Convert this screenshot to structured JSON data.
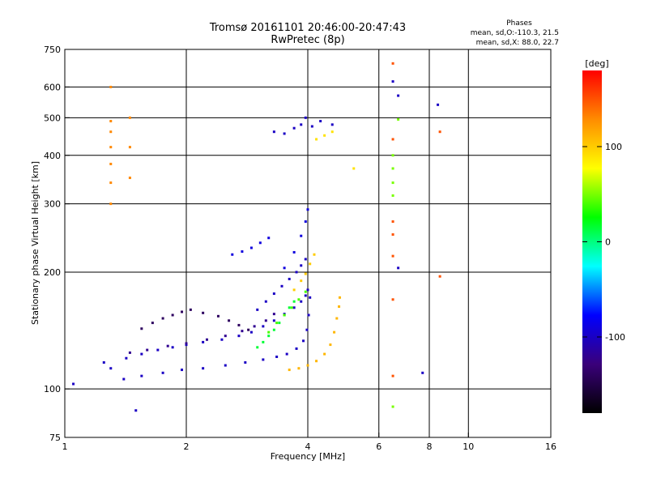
{
  "chart_data": {
    "type": "scatter",
    "title": "Tromsø 20161101 20:46:00-20:47:43",
    "subtitle": "RwPretec (8p)",
    "xlabel": "Frequency [MHz]",
    "ylabel": "Stationary phase Virtual Height [km]",
    "x_scale": "log",
    "y_scale": "log",
    "xlim": [
      1,
      16
    ],
    "ylim": [
      75,
      750
    ],
    "x_ticks": [
      1,
      2,
      4,
      6,
      8,
      10,
      16
    ],
    "y_ticks": [
      75,
      100,
      200,
      300,
      400,
      500,
      600,
      750
    ],
    "x_grid": [
      2,
      4,
      6,
      8,
      10
    ],
    "y_grid": [
      100,
      200,
      300,
      400,
      500,
      600
    ],
    "grid": true,
    "phases": {
      "heading": "Phases",
      "line1": "mean, sd,O:-110.3, 21.5",
      "line2": "mean, sd,X:  88.0, 22.7"
    },
    "colorbar": {
      "label": "[deg]",
      "ticks": [
        100,
        0,
        -100
      ],
      "range": [
        -180,
        180
      ],
      "colors": [
        "#ff0000",
        "#ff8c00",
        "#ffff00",
        "#00ff00",
        "#00ffff",
        "#0000ff",
        "#3a007a",
        "#000000"
      ]
    },
    "series": [
      {
        "phase": -100,
        "points": [
          [
            1.25,
            117
          ],
          [
            1.3,
            113
          ],
          [
            1.42,
            120
          ],
          [
            1.55,
            123
          ],
          [
            1.7,
            126
          ],
          [
            1.85,
            128
          ],
          [
            2.0,
            130
          ],
          [
            2.2,
            132
          ],
          [
            2.45,
            134
          ],
          [
            2.7,
            137
          ],
          [
            2.9,
            140
          ],
          [
            3.1,
            145
          ],
          [
            3.3,
            150
          ],
          [
            3.5,
            156
          ],
          [
            3.7,
            162
          ],
          [
            3.85,
            168
          ],
          [
            3.95,
            174
          ],
          [
            4.0,
            180
          ]
        ]
      },
      {
        "phase": -100,
        "points": [
          [
            1.4,
            106
          ],
          [
            1.55,
            108
          ],
          [
            1.75,
            110
          ],
          [
            1.95,
            112
          ],
          [
            2.2,
            113
          ],
          [
            2.5,
            115
          ],
          [
            2.8,
            117
          ],
          [
            3.1,
            119
          ],
          [
            3.35,
            121
          ],
          [
            3.55,
            123
          ],
          [
            3.75,
            127
          ],
          [
            3.9,
            133
          ],
          [
            3.98,
            142
          ],
          [
            4.02,
            155
          ],
          [
            4.05,
            172
          ]
        ]
      },
      {
        "phase": -140,
        "points": [
          [
            1.55,
            143
          ],
          [
            1.65,
            148
          ],
          [
            1.75,
            152
          ],
          [
            1.85,
            155
          ],
          [
            1.95,
            158
          ],
          [
            2.05,
            160
          ],
          [
            2.2,
            157
          ],
          [
            2.4,
            154
          ],
          [
            2.55,
            150
          ],
          [
            2.7,
            146
          ],
          [
            2.85,
            142
          ]
        ]
      },
      {
        "phase": -120,
        "points": [
          [
            1.45,
            124
          ],
          [
            1.6,
            126
          ],
          [
            1.8,
            129
          ],
          [
            2.0,
            131
          ],
          [
            2.25,
            134
          ],
          [
            2.5,
            137
          ],
          [
            2.75,
            141
          ],
          [
            2.95,
            145
          ],
          [
            3.15,
            150
          ],
          [
            3.3,
            156
          ]
        ]
      },
      {
        "phase": -100,
        "points": [
          [
            3.0,
            160
          ],
          [
            3.15,
            168
          ],
          [
            3.3,
            176
          ],
          [
            3.45,
            184
          ],
          [
            3.6,
            192
          ],
          [
            3.75,
            200
          ],
          [
            3.85,
            208
          ],
          [
            3.95,
            216
          ]
        ]
      },
      {
        "phase": -90,
        "points": [
          [
            3.5,
            205
          ],
          [
            3.7,
            225
          ],
          [
            3.85,
            248
          ],
          [
            3.95,
            270
          ],
          [
            4.0,
            290
          ]
        ]
      },
      {
        "phase": -90,
        "points": [
          [
            2.6,
            222
          ],
          [
            2.75,
            226
          ],
          [
            2.9,
            231
          ],
          [
            3.05,
            238
          ],
          [
            3.2,
            245
          ]
        ]
      },
      {
        "phase": 15,
        "points": [
          [
            3.0,
            128
          ],
          [
            3.1,
            132
          ],
          [
            3.2,
            137
          ],
          [
            3.3,
            142
          ],
          [
            3.4,
            148
          ],
          [
            3.5,
            155
          ],
          [
            3.6,
            162
          ],
          [
            3.7,
            168
          ]
        ]
      },
      {
        "phase": 40,
        "points": [
          [
            3.2,
            140
          ],
          [
            3.35,
            148
          ],
          [
            3.5,
            155
          ],
          [
            3.65,
            162
          ],
          [
            3.8,
            170
          ],
          [
            3.95,
            178
          ]
        ]
      },
      {
        "phase": 110,
        "points": [
          [
            3.6,
            112
          ],
          [
            3.8,
            113
          ],
          [
            4.0,
            115
          ],
          [
            4.2,
            118
          ],
          [
            4.4,
            123
          ],
          [
            4.55,
            130
          ],
          [
            4.65,
            140
          ],
          [
            4.72,
            152
          ],
          [
            4.78,
            163
          ],
          [
            4.8,
            172
          ]
        ]
      },
      {
        "phase": 100,
        "points": [
          [
            3.7,
            180
          ],
          [
            3.85,
            190
          ],
          [
            3.95,
            198
          ],
          [
            4.05,
            210
          ],
          [
            4.15,
            222
          ]
        ]
      },
      {
        "phase": 130,
        "points": [
          [
            1.3,
            300
          ],
          [
            1.3,
            340
          ],
          [
            1.3,
            380
          ],
          [
            1.3,
            420
          ],
          [
            1.3,
            460
          ],
          [
            1.3,
            490
          ],
          [
            1.3,
            600
          ],
          [
            1.45,
            350
          ],
          [
            1.45,
            420
          ],
          [
            1.45,
            500
          ]
        ]
      },
      {
        "phase": -100,
        "points": [
          [
            3.3,
            460
          ],
          [
            3.5,
            455
          ],
          [
            3.7,
            470
          ],
          [
            3.85,
            480
          ],
          [
            3.95,
            500
          ],
          [
            4.1,
            475
          ],
          [
            4.3,
            490
          ],
          [
            4.6,
            480
          ]
        ]
      },
      {
        "phase": 90,
        "points": [
          [
            4.2,
            440
          ],
          [
            4.4,
            450
          ],
          [
            4.6,
            460
          ],
          [
            5.2,
            370
          ]
        ]
      },
      {
        "phase": 150,
        "points": [
          [
            6.5,
            690
          ],
          [
            6.5,
            440
          ],
          [
            6.5,
            270
          ],
          [
            6.5,
            250
          ],
          [
            6.5,
            220
          ],
          [
            6.5,
            170
          ],
          [
            6.5,
            108
          ],
          [
            8.5,
            460
          ],
          [
            8.5,
            195
          ]
        ]
      },
      {
        "phase": 50,
        "points": [
          [
            6.5,
            400
          ],
          [
            6.5,
            370
          ],
          [
            6.5,
            340
          ],
          [
            6.5,
            315
          ],
          [
            6.7,
            495
          ],
          [
            6.5,
            90
          ]
        ]
      },
      {
        "phase": -100,
        "points": [
          [
            6.5,
            620
          ],
          [
            6.7,
            570
          ],
          [
            6.7,
            205
          ],
          [
            8.4,
            540
          ],
          [
            7.7,
            110
          ],
          [
            1.05,
            103
          ],
          [
            1.5,
            88
          ]
        ]
      }
    ]
  }
}
